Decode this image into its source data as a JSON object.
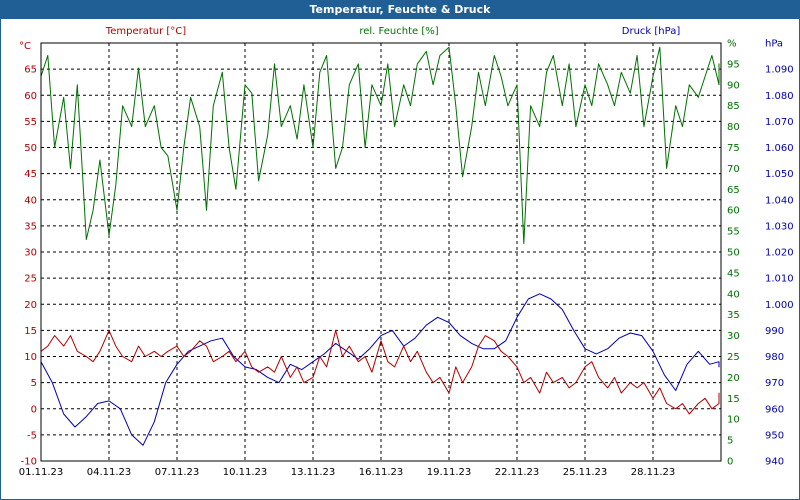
{
  "window": {
    "title": "Temperatur, Feuchte & Druck"
  },
  "chart_data": {
    "type": "line",
    "title": "Temperatur, Feuchte & Druck",
    "x": {
      "range": [
        0,
        30
      ],
      "tick_labels": [
        "01.11.23",
        "04.11.23",
        "07.11.23",
        "10.11.23",
        "13.11.23",
        "16.11.23",
        "19.11.23",
        "22.11.23",
        "25.11.23",
        "28.11.23"
      ],
      "tick_values": [
        0,
        3,
        6,
        9,
        12,
        15,
        18,
        21,
        24,
        27
      ]
    },
    "axes": {
      "temperature": {
        "label": "Temperatur [°C]",
        "unit": "°C",
        "range": [
          -10,
          70
        ],
        "ticks": [
          "-10",
          "-5",
          "0",
          "5",
          "10",
          "15",
          "20",
          "25",
          "30",
          "35",
          "40",
          "45",
          "50",
          "55",
          "60",
          "65"
        ]
      },
      "humidity": {
        "label": "rel. Feuchte [%]",
        "unit": "%",
        "range": [
          0,
          100
        ],
        "ticks": [
          "0",
          "5",
          "10",
          "15",
          "20",
          "25",
          "30",
          "35",
          "40",
          "45",
          "50",
          "55",
          "60",
          "65",
          "70",
          "75",
          "80",
          "85",
          "90",
          "95",
          "%"
        ]
      },
      "pressure": {
        "label": "Druck [hPa]",
        "unit": "hPa",
        "range": [
          940,
          1100
        ],
        "ticks": [
          "940",
          "950",
          "960",
          "970",
          "980",
          "990",
          "1.000",
          "1.010",
          "1.020",
          "1.030",
          "1.040",
          "1.050",
          "1.060",
          "1.070",
          "1.080",
          "1.090",
          "hPa"
        ]
      }
    },
    "grid": true,
    "colors": {
      "temperature": "#b00000",
      "humidity": "#007000",
      "pressure": "#0000b0",
      "title_bar": "#1f5f95"
    },
    "series": [
      {
        "name": "Temperatur [°C]",
        "axis": "temperature",
        "points": [
          [
            0,
            11
          ],
          [
            0.3,
            12
          ],
          [
            0.6,
            14
          ],
          [
            1,
            12
          ],
          [
            1.3,
            14
          ],
          [
            1.6,
            11
          ],
          [
            2,
            10
          ],
          [
            2.3,
            9
          ],
          [
            2.6,
            11
          ],
          [
            3,
            15
          ],
          [
            3.3,
            12
          ],
          [
            3.6,
            10
          ],
          [
            4,
            9
          ],
          [
            4.3,
            12
          ],
          [
            4.6,
            10
          ],
          [
            5,
            11
          ],
          [
            5.3,
            10
          ],
          [
            5.6,
            11
          ],
          [
            6,
            12
          ],
          [
            6.3,
            10
          ],
          [
            6.6,
            11
          ],
          [
            7,
            13
          ],
          [
            7.3,
            12
          ],
          [
            7.6,
            9
          ],
          [
            8,
            10
          ],
          [
            8.3,
            11
          ],
          [
            8.6,
            9
          ],
          [
            9,
            11
          ],
          [
            9.3,
            8
          ],
          [
            9.6,
            7
          ],
          [
            10,
            8
          ],
          [
            10.3,
            7
          ],
          [
            10.6,
            10
          ],
          [
            11,
            6
          ],
          [
            11.3,
            8
          ],
          [
            11.6,
            5
          ],
          [
            12,
            6
          ],
          [
            12.3,
            10
          ],
          [
            12.6,
            8
          ],
          [
            13,
            15
          ],
          [
            13.3,
            10
          ],
          [
            13.6,
            12
          ],
          [
            14,
            9
          ],
          [
            14.3,
            10
          ],
          [
            14.6,
            7
          ],
          [
            15,
            13
          ],
          [
            15.3,
            9
          ],
          [
            15.6,
            8
          ],
          [
            16,
            12
          ],
          [
            16.3,
            9
          ],
          [
            16.6,
            11
          ],
          [
            17,
            7
          ],
          [
            17.3,
            5
          ],
          [
            17.6,
            6
          ],
          [
            18,
            3
          ],
          [
            18.3,
            8
          ],
          [
            18.6,
            5
          ],
          [
            19,
            8
          ],
          [
            19.3,
            12
          ],
          [
            19.6,
            14
          ],
          [
            20,
            13
          ],
          [
            20.3,
            11
          ],
          [
            20.6,
            10
          ],
          [
            21,
            8
          ],
          [
            21.3,
            5
          ],
          [
            21.6,
            6
          ],
          [
            22,
            3
          ],
          [
            22.3,
            7
          ],
          [
            22.6,
            5
          ],
          [
            23,
            6
          ],
          [
            23.3,
            4
          ],
          [
            23.6,
            5
          ],
          [
            24,
            8
          ],
          [
            24.3,
            9
          ],
          [
            24.6,
            6
          ],
          [
            25,
            4
          ],
          [
            25.3,
            6
          ],
          [
            25.6,
            3
          ],
          [
            26,
            5
          ],
          [
            26.3,
            4
          ],
          [
            26.6,
            5
          ],
          [
            27,
            2
          ],
          [
            27.3,
            4
          ],
          [
            27.6,
            1
          ],
          [
            28,
            0
          ],
          [
            28.3,
            1
          ],
          [
            28.6,
            -1
          ],
          [
            29,
            1
          ],
          [
            29.3,
            2
          ],
          [
            29.6,
            0
          ],
          [
            30,
            1
          ],
          [
            30.3,
            3
          ],
          [
            30.6,
            1
          ]
        ]
      },
      {
        "name": "rel. Feuchte [%]",
        "axis": "humidity",
        "points": [
          [
            0,
            92
          ],
          [
            0.3,
            97
          ],
          [
            0.6,
            75
          ],
          [
            1,
            87
          ],
          [
            1.3,
            70
          ],
          [
            1.6,
            90
          ],
          [
            2,
            53
          ],
          [
            2.3,
            60
          ],
          [
            2.6,
            72
          ],
          [
            3,
            54
          ],
          [
            3.3,
            66
          ],
          [
            3.6,
            85
          ],
          [
            4,
            80
          ],
          [
            4.3,
            94
          ],
          [
            4.6,
            80
          ],
          [
            5,
            85
          ],
          [
            5.3,
            75
          ],
          [
            5.6,
            73
          ],
          [
            6,
            60
          ],
          [
            6.3,
            75
          ],
          [
            6.6,
            87
          ],
          [
            7,
            80
          ],
          [
            7.3,
            60
          ],
          [
            7.6,
            85
          ],
          [
            8,
            93
          ],
          [
            8.3,
            75
          ],
          [
            8.6,
            65
          ],
          [
            9,
            90
          ],
          [
            9.3,
            88
          ],
          [
            9.6,
            67
          ],
          [
            10,
            78
          ],
          [
            10.3,
            95
          ],
          [
            10.6,
            80
          ],
          [
            11,
            85
          ],
          [
            11.3,
            77
          ],
          [
            11.6,
            90
          ],
          [
            12,
            75
          ],
          [
            12.3,
            93
          ],
          [
            12.6,
            97
          ],
          [
            13,
            70
          ],
          [
            13.3,
            75
          ],
          [
            13.6,
            90
          ],
          [
            14,
            95
          ],
          [
            14.3,
            75
          ],
          [
            14.6,
            90
          ],
          [
            15,
            85
          ],
          [
            15.3,
            95
          ],
          [
            15.6,
            80
          ],
          [
            16,
            90
          ],
          [
            16.3,
            85
          ],
          [
            16.6,
            95
          ],
          [
            17,
            98
          ],
          [
            17.3,
            90
          ],
          [
            17.6,
            97
          ],
          [
            18,
            99
          ],
          [
            18.3,
            85
          ],
          [
            18.6,
            68
          ],
          [
            19,
            80
          ],
          [
            19.3,
            93
          ],
          [
            19.6,
            85
          ],
          [
            20,
            97
          ],
          [
            20.3,
            92
          ],
          [
            20.6,
            85
          ],
          [
            21,
            90
          ],
          [
            21.3,
            52
          ],
          [
            21.6,
            85
          ],
          [
            22,
            80
          ],
          [
            22.3,
            93
          ],
          [
            22.6,
            97
          ],
          [
            23,
            85
          ],
          [
            23.3,
            95
          ],
          [
            23.6,
            80
          ],
          [
            24,
            90
          ],
          [
            24.3,
            85
          ],
          [
            24.6,
            95
          ],
          [
            25,
            90
          ],
          [
            25.3,
            85
          ],
          [
            25.6,
            93
          ],
          [
            26,
            88
          ],
          [
            26.3,
            97
          ],
          [
            26.6,
            80
          ],
          [
            27,
            92
          ],
          [
            27.3,
            99
          ],
          [
            27.6,
            70
          ],
          [
            28,
            85
          ],
          [
            28.3,
            80
          ],
          [
            28.6,
            90
          ],
          [
            29,
            87
          ],
          [
            29.3,
            92
          ],
          [
            29.6,
            97
          ],
          [
            30,
            90
          ],
          [
            30.3,
            95
          ],
          [
            30.6,
            92
          ]
        ]
      },
      {
        "name": "Druck [hPa]",
        "axis": "pressure",
        "points": [
          [
            0,
            978
          ],
          [
            0.5,
            970
          ],
          [
            1,
            958
          ],
          [
            1.5,
            953
          ],
          [
            2,
            957
          ],
          [
            2.5,
            962
          ],
          [
            3,
            963
          ],
          [
            3.5,
            960
          ],
          [
            4,
            950
          ],
          [
            4.5,
            946
          ],
          [
            5,
            955
          ],
          [
            5.5,
            970
          ],
          [
            6,
            977
          ],
          [
            6.5,
            982
          ],
          [
            7,
            984
          ],
          [
            7.5,
            986
          ],
          [
            8,
            987
          ],
          [
            8.5,
            980
          ],
          [
            9,
            976
          ],
          [
            9.5,
            975
          ],
          [
            10,
            972
          ],
          [
            10.5,
            970
          ],
          [
            11,
            977
          ],
          [
            11.5,
            975
          ],
          [
            12,
            978
          ],
          [
            12.5,
            981
          ],
          [
            13,
            985
          ],
          [
            13.5,
            982
          ],
          [
            14,
            979
          ],
          [
            14.5,
            983
          ],
          [
            15,
            988
          ],
          [
            15.5,
            990
          ],
          [
            16,
            984
          ],
          [
            16.5,
            987
          ],
          [
            17,
            992
          ],
          [
            17.5,
            995
          ],
          [
            18,
            993
          ],
          [
            18.5,
            988
          ],
          [
            19,
            985
          ],
          [
            19.5,
            983
          ],
          [
            20,
            983
          ],
          [
            20.5,
            986
          ],
          [
            21,
            995
          ],
          [
            21.5,
            1002
          ],
          [
            22,
            1004
          ],
          [
            22.5,
            1002
          ],
          [
            23,
            998
          ],
          [
            23.5,
            990
          ],
          [
            24,
            983
          ],
          [
            24.5,
            981
          ],
          [
            25,
            983
          ],
          [
            25.5,
            987
          ],
          [
            26,
            989
          ],
          [
            26.5,
            988
          ],
          [
            27,
            982
          ],
          [
            27.5,
            973
          ],
          [
            28,
            967
          ],
          [
            28.5,
            977
          ],
          [
            29,
            982
          ],
          [
            29.5,
            977
          ],
          [
            30,
            978
          ],
          [
            30.5,
            976
          ],
          [
            31,
            977
          ]
        ]
      }
    ]
  }
}
